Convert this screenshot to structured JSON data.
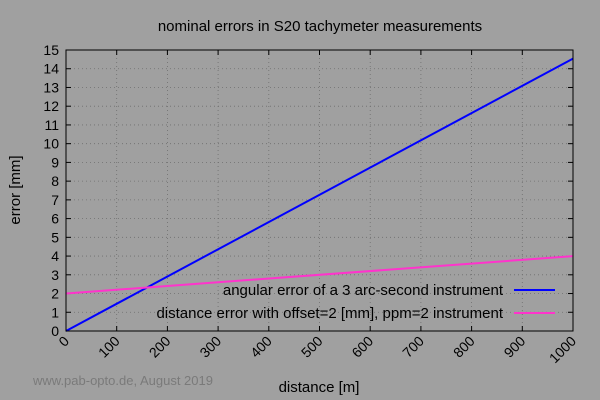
{
  "chart_data": {
    "type": "line",
    "title": "nominal errors in S20 tachymeter measurements",
    "xlabel": "distance [m]",
    "ylabel": "error [mm]",
    "xlim": [
      0,
      1000
    ],
    "ylim": [
      0,
      15
    ],
    "x_ticks": [
      0,
      100,
      200,
      300,
      400,
      500,
      600,
      700,
      800,
      900,
      1000
    ],
    "y_ticks": [
      0,
      1,
      2,
      3,
      4,
      5,
      6,
      7,
      8,
      9,
      10,
      11,
      12,
      13,
      14,
      15
    ],
    "grid": true,
    "legend_position": "bottom-right",
    "series": [
      {
        "name": "angular error of a 3 arc-second instrument",
        "color": "#0000ff",
        "x": [
          0,
          1000
        ],
        "y": [
          0,
          14.54
        ]
      },
      {
        "name": "distance error with offset=2 [mm], ppm=2 instrument",
        "color": "#ff33cc",
        "x": [
          0,
          1000
        ],
        "y": [
          2,
          4
        ]
      }
    ]
  },
  "watermark": "www.pab-opto.de, August 2019",
  "colors": {
    "background": "#a0a0a0",
    "grid": "#6e6e6e",
    "axis": "#000000"
  }
}
